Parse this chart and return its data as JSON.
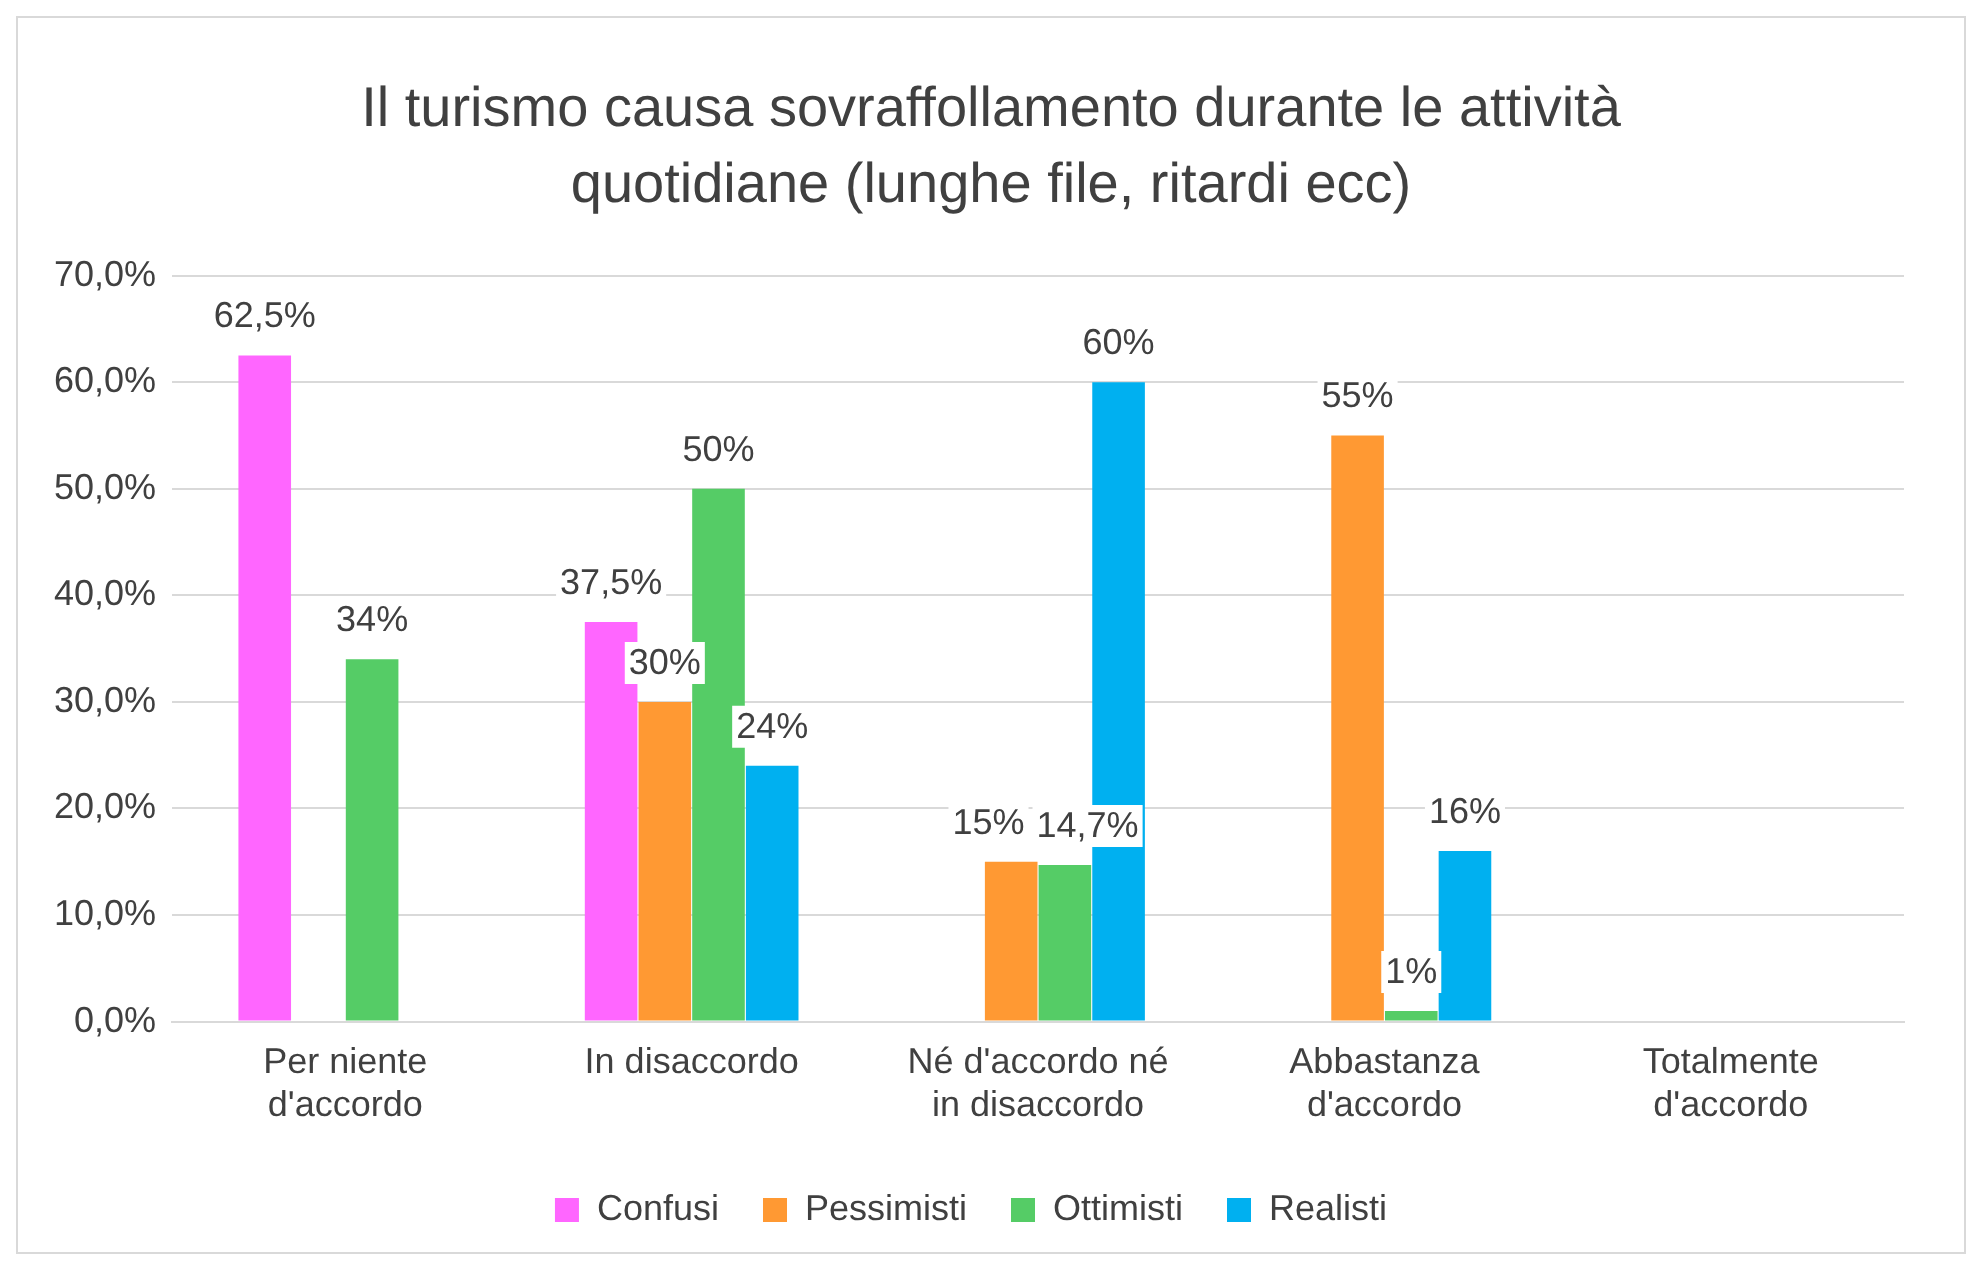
{
  "chart_data": {
    "type": "bar",
    "title": "Il turismo causa sovraffollamento durante le attività quotidiane (lunghe file, ritardi ecc)",
    "categories": [
      "Per niente d'accordo",
      "In disaccordo",
      "Né d'accordo né in disaccordo",
      "Abbastanza d'accordo",
      "Totalmente d'accordo"
    ],
    "series": [
      {
        "name": "Confusi",
        "color": "#ff66ff",
        "values": [
          62.5,
          37.5,
          null,
          null,
          null
        ],
        "value_labels": [
          "62,5%",
          "37,5%",
          null,
          null,
          null
        ]
      },
      {
        "name": "Pessimisti",
        "color": "#ff9933",
        "values": [
          null,
          30,
          15,
          55,
          null
        ],
        "value_labels": [
          null,
          "30%",
          "15%",
          "55%",
          null
        ]
      },
      {
        "name": "Ottimisti",
        "color": "#55cc66",
        "values": [
          34,
          50,
          14.7,
          1,
          null
        ],
        "value_labels": [
          "34%",
          "50%",
          "14,7%",
          "1%",
          null
        ]
      },
      {
        "name": "Realisti",
        "color": "#00b0f0",
        "values": [
          null,
          24,
          60,
          16,
          null
        ],
        "value_labels": [
          null,
          "24%",
          "60%",
          "16%",
          null
        ]
      }
    ],
    "ylim": [
      0,
      70
    ],
    "yticks": [
      {
        "value": 0,
        "label": "0,0%"
      },
      {
        "value": 10,
        "label": "10,0%"
      },
      {
        "value": 20,
        "label": "20,0%"
      },
      {
        "value": 30,
        "label": "30,0%"
      },
      {
        "value": 40,
        "label": "40,0%"
      },
      {
        "value": 50,
        "label": "50,0%"
      },
      {
        "value": 60,
        "label": "60,0%"
      },
      {
        "value": 70,
        "label": "70,0%"
      }
    ],
    "grid": "y",
    "legend": "bottom"
  }
}
